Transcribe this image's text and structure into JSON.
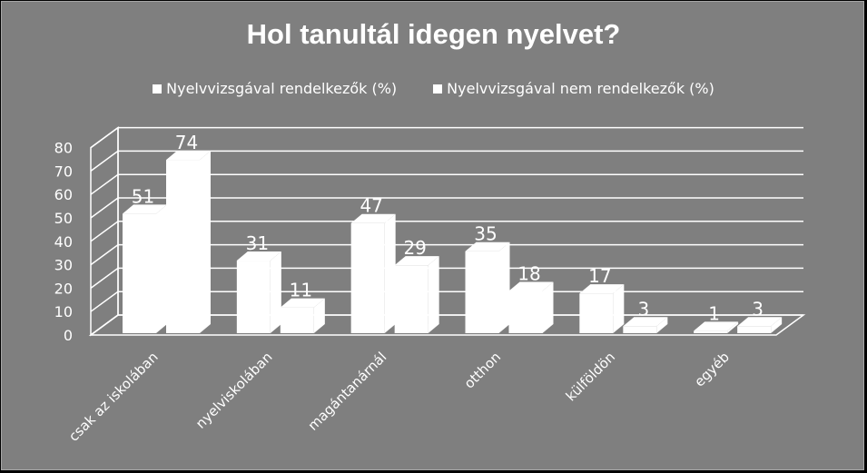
{
  "chart_data": {
    "type": "bar",
    "title": "Hol tanultál idegen nyelvet?",
    "categories": [
      "csak az iskolában",
      "nyelviskolában",
      "magántanárnál",
      "otthon",
      "külföldön",
      "egyéb"
    ],
    "series": [
      {
        "name": "Nyelvvizsgával rendelkezők (%)",
        "values": [
          51,
          31,
          47,
          35,
          17,
          1
        ]
      },
      {
        "name": "Nyelvvizsgával nem rendelkezők (%)",
        "values": [
          74,
          11,
          29,
          18,
          3,
          3
        ]
      }
    ],
    "ylim": [
      0,
      80
    ],
    "yticks": [
      0,
      10,
      20,
      30,
      40,
      50,
      60,
      70,
      80
    ],
    "grid": true,
    "legend": "top",
    "colors": {
      "background": "#7f7f7f",
      "bars": "#ffffff",
      "text": "#ffffff"
    }
  }
}
